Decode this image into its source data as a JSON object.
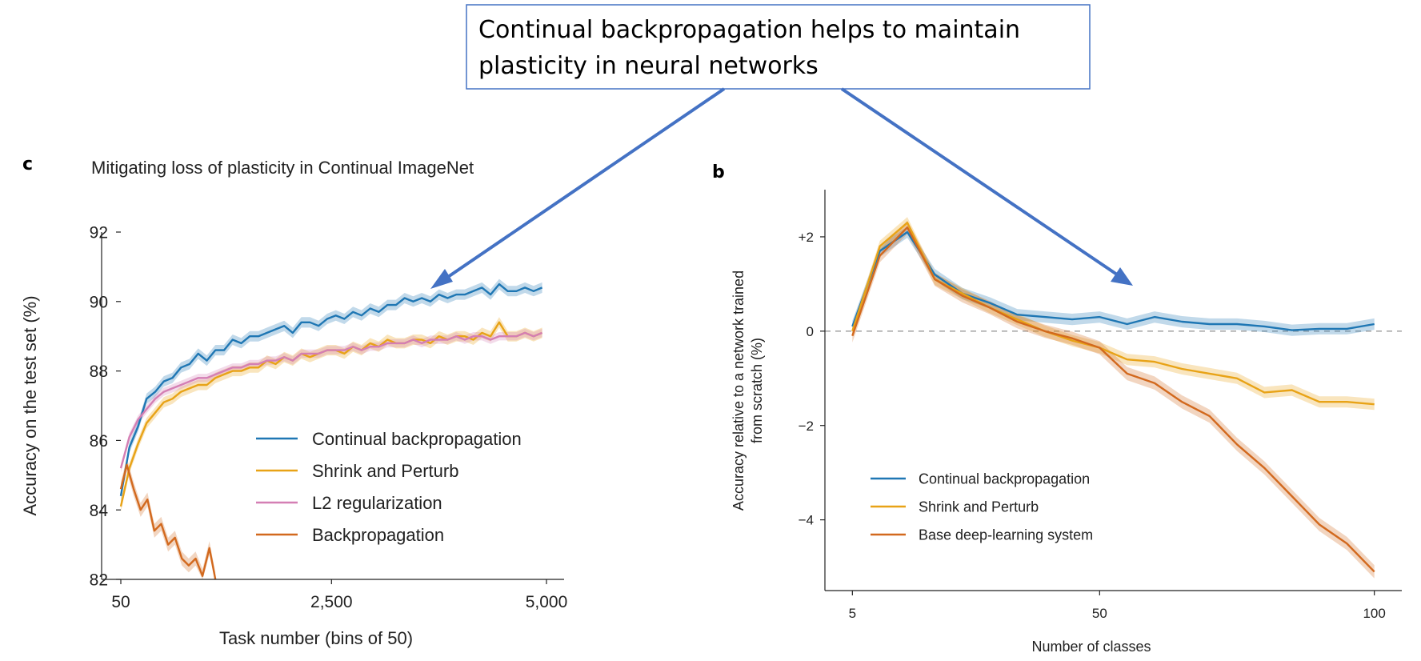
{
  "callout": {
    "line1": "Continual backpropagation helps to maintain",
    "line2": "plasticity in neural networks",
    "border_color": "#4472c4",
    "arrow_color": "#4472c4"
  },
  "chart_data": [
    {
      "panel": "c",
      "type": "line",
      "title": "Mitigating loss of plasticity in Continual ImageNet",
      "xlabel": "Task number (bins of 50)",
      "ylabel": "Accuracy on the test set (%)",
      "xticks": [
        "50",
        "2,500",
        "5,000"
      ],
      "yticks": [
        "82",
        "84",
        "86",
        "88",
        "90",
        "92"
      ],
      "xlim": [
        50,
        5000
      ],
      "ylim": [
        82,
        92
      ],
      "legend_position": "center-right",
      "x": [
        50,
        150,
        250,
        350,
        450,
        550,
        650,
        750,
        850,
        950,
        1050,
        1150,
        1250,
        1350,
        1450,
        1550,
        1650,
        1750,
        1850,
        1950,
        2050,
        2150,
        2250,
        2350,
        2450,
        2550,
        2650,
        2750,
        2850,
        2950,
        3050,
        3150,
        3250,
        3350,
        3450,
        3550,
        3650,
        3750,
        3850,
        3950,
        4050,
        4150,
        4250,
        4350,
        4450,
        4550,
        4650,
        4750,
        4850,
        4950
      ],
      "series": [
        {
          "name": "Continual backpropagation",
          "color": "#1f77b4",
          "band": 0.15,
          "values": [
            84.4,
            85.8,
            86.4,
            87.2,
            87.4,
            87.7,
            87.8,
            88.1,
            88.2,
            88.5,
            88.3,
            88.6,
            88.6,
            88.9,
            88.8,
            89.0,
            89.0,
            89.1,
            89.2,
            89.3,
            89.1,
            89.4,
            89.4,
            89.3,
            89.5,
            89.6,
            89.5,
            89.7,
            89.6,
            89.8,
            89.7,
            89.9,
            89.9,
            90.1,
            90.0,
            90.1,
            90.0,
            90.2,
            90.1,
            90.2,
            90.2,
            90.3,
            90.4,
            90.2,
            90.5,
            90.3,
            90.3,
            90.4,
            90.3,
            90.4
          ]
        },
        {
          "name": "Shrink and Perturb",
          "color": "#e8a317",
          "band": 0.15,
          "values": [
            84.1,
            85.2,
            85.9,
            86.5,
            86.8,
            87.1,
            87.2,
            87.4,
            87.5,
            87.6,
            87.6,
            87.8,
            87.9,
            88.0,
            88.0,
            88.1,
            88.1,
            88.3,
            88.2,
            88.4,
            88.3,
            88.5,
            88.4,
            88.5,
            88.6,
            88.6,
            88.5,
            88.7,
            88.6,
            88.8,
            88.7,
            88.9,
            88.8,
            88.8,
            88.9,
            88.9,
            88.8,
            89.0,
            88.9,
            89.0,
            89.0,
            88.9,
            89.1,
            89.0,
            89.4,
            89.0,
            89.0,
            89.1,
            89.0,
            89.1
          ]
        },
        {
          "name": "L2 regularization",
          "color": "#d47fb4",
          "band": 0.12,
          "values": [
            85.2,
            86.1,
            86.6,
            86.9,
            87.2,
            87.4,
            87.5,
            87.6,
            87.7,
            87.8,
            87.8,
            87.9,
            88.0,
            88.1,
            88.1,
            88.2,
            88.2,
            88.3,
            88.3,
            88.4,
            88.3,
            88.5,
            88.5,
            88.5,
            88.6,
            88.6,
            88.6,
            88.7,
            88.6,
            88.7,
            88.7,
            88.8,
            88.8,
            88.8,
            88.9,
            88.8,
            88.9,
            88.9,
            88.9,
            89.0,
            88.9,
            89.0,
            89.0,
            88.9,
            89.0,
            89.0,
            89.0,
            89.1,
            89.0,
            89.1
          ]
        },
        {
          "name": "Backpropagation",
          "color": "#d2691e",
          "band": 0.2,
          "x": [
            50,
            120,
            200,
            280,
            360,
            440,
            520,
            600,
            680,
            760,
            840,
            920,
            1000,
            1080,
            1150
          ],
          "values": [
            84.6,
            85.3,
            84.6,
            84.0,
            84.3,
            83.4,
            83.6,
            83.0,
            83.2,
            82.6,
            82.4,
            82.6,
            82.1,
            82.9,
            82.0
          ]
        }
      ]
    },
    {
      "panel": "b",
      "type": "line",
      "title": "",
      "xlabel": "Number of classes",
      "ylabel": "Accuracy relative to a network trained from scratch (%)",
      "ylabel_lines": [
        "Accuracy relative to a network trained",
        "from scratch (%)"
      ],
      "xticks": [
        "5",
        "50",
        "100"
      ],
      "yticks": [
        "+2",
        "0",
        "−2",
        "−4"
      ],
      "xlim": [
        0,
        105
      ],
      "ylim": [
        -5.5,
        3.0
      ],
      "reference_line": 0,
      "legend_position": "bottom-left",
      "x": [
        5,
        10,
        15,
        20,
        25,
        30,
        35,
        40,
        45,
        50,
        55,
        60,
        65,
        70,
        75,
        80,
        85,
        90,
        95,
        100
      ],
      "series": [
        {
          "name": "Continual backpropagation",
          "color": "#1f77b4",
          "band": 0.12,
          "values": [
            0.1,
            1.7,
            2.1,
            1.2,
            0.8,
            0.6,
            0.35,
            0.3,
            0.25,
            0.3,
            0.15,
            0.3,
            0.2,
            0.15,
            0.15,
            0.1,
            0.02,
            0.05,
            0.05,
            0.15
          ]
        },
        {
          "name": "Shrink and Perturb",
          "color": "#e8a317",
          "band": 0.12,
          "values": [
            0.0,
            1.8,
            2.3,
            1.1,
            0.8,
            0.5,
            0.25,
            0.0,
            -0.2,
            -0.35,
            -0.6,
            -0.65,
            -0.8,
            -0.9,
            -1.0,
            -1.3,
            -1.25,
            -1.5,
            -1.5,
            -1.55
          ]
        },
        {
          "name": "Base deep-learning system",
          "color": "#d2691e",
          "band": 0.14,
          "values": [
            -0.1,
            1.6,
            2.2,
            1.1,
            0.75,
            0.5,
            0.2,
            0.0,
            -0.15,
            -0.35,
            -0.9,
            -1.1,
            -1.5,
            -1.8,
            -2.4,
            -2.9,
            -3.5,
            -4.1,
            -4.5,
            -5.1
          ]
        }
      ]
    }
  ]
}
